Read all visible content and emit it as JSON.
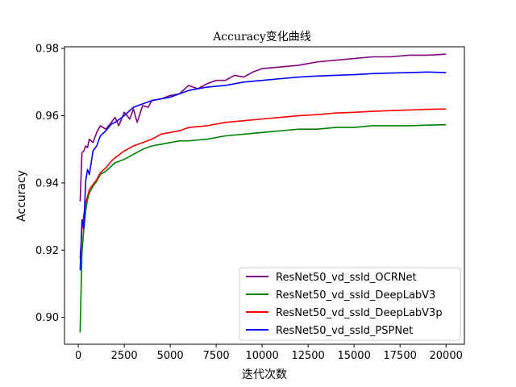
{
  "chart_data": {
    "type": "line",
    "title": "Accuracy变化曲线",
    "xlabel": "迭代次数",
    "ylabel": "Accuracy",
    "xlim": [
      -750,
      21000
    ],
    "ylim": [
      0.892,
      0.9805
    ],
    "xticks": [
      0,
      2500,
      5000,
      7500,
      10000,
      12500,
      15000,
      17500,
      20000
    ],
    "xtick_labels": [
      "0",
      "2500",
      "5000",
      "7500",
      "10000",
      "12500",
      "15000",
      "17500",
      "20000"
    ],
    "yticks": [
      0.9,
      0.92,
      0.94,
      0.96,
      0.98
    ],
    "ytick_labels": [
      "0.90",
      "0.92",
      "0.94",
      "0.96",
      "0.98"
    ],
    "grid": false,
    "legend_position": "lower-right",
    "series": [
      {
        "name": "ResNet50_vd_ssld_OCRNet",
        "color": "#800080",
        "x": [
          100,
          200,
          300,
          400,
          500,
          600,
          800,
          1000,
          1200,
          1500,
          1800,
          2000,
          2200,
          2500,
          2800,
          3000,
          3200,
          3500,
          3800,
          4000,
          4500,
          5000,
          5500,
          6000,
          6500,
          7000,
          7500,
          8000,
          8500,
          9000,
          9500,
          10000,
          11000,
          12000,
          13000,
          14000,
          15000,
          16000,
          17000,
          18000,
          19000,
          20000
        ],
        "y": [
          0.9345,
          0.949,
          0.9495,
          0.951,
          0.9505,
          0.953,
          0.952,
          0.955,
          0.957,
          0.956,
          0.958,
          0.9595,
          0.957,
          0.961,
          0.959,
          0.962,
          0.958,
          0.963,
          0.9625,
          0.9645,
          0.965,
          0.966,
          0.9665,
          0.969,
          0.968,
          0.9695,
          0.9705,
          0.9705,
          0.972,
          0.9715,
          0.973,
          0.974,
          0.9745,
          0.975,
          0.976,
          0.9765,
          0.977,
          0.9775,
          0.9775,
          0.978,
          0.978,
          0.9783
        ]
      },
      {
        "name": "ResNet50_vd_ssld_DeepLabV3",
        "color": "#008000",
        "x": [
          100,
          200,
          300,
          400,
          500,
          600,
          800,
          1000,
          1200,
          1500,
          1800,
          2000,
          2500,
          3000,
          3500,
          4000,
          4500,
          5000,
          5500,
          6000,
          7000,
          8000,
          9000,
          10000,
          11000,
          12000,
          13000,
          14000,
          15000,
          16000,
          17000,
          18000,
          19000,
          20000
        ],
        "y": [
          0.8955,
          0.9195,
          0.926,
          0.9315,
          0.935,
          0.937,
          0.939,
          0.9405,
          0.9425,
          0.9435,
          0.945,
          0.946,
          0.947,
          0.9485,
          0.95,
          0.951,
          0.9515,
          0.952,
          0.9525,
          0.9525,
          0.953,
          0.954,
          0.9545,
          0.955,
          0.9555,
          0.956,
          0.956,
          0.9565,
          0.9565,
          0.957,
          0.957,
          0.957,
          0.9572,
          0.9573
        ]
      },
      {
        "name": "ResNet50_vd_ssld_DeepLabV3p",
        "color": "#ff0000",
        "x": [
          100,
          200,
          300,
          400,
          500,
          600,
          800,
          1000,
          1200,
          1500,
          1800,
          2000,
          2500,
          3000,
          3500,
          4000,
          4500,
          5000,
          5500,
          6000,
          7000,
          8000,
          9000,
          10000,
          11000,
          12000,
          13000,
          14000,
          15000,
          16000,
          17000,
          18000,
          19000,
          20000
        ],
        "y": [
          0.9175,
          0.926,
          0.9305,
          0.934,
          0.936,
          0.938,
          0.9395,
          0.941,
          0.943,
          0.9445,
          0.9465,
          0.9475,
          0.9495,
          0.951,
          0.952,
          0.953,
          0.9545,
          0.955,
          0.9555,
          0.9565,
          0.957,
          0.958,
          0.9585,
          0.959,
          0.9595,
          0.96,
          0.9603,
          0.9608,
          0.961,
          0.9613,
          0.9615,
          0.9617,
          0.9619,
          0.962
        ]
      },
      {
        "name": "ResNet50_vd_ssld_PSPNet",
        "color": "#0000ff",
        "x": [
          100,
          200,
          300,
          400,
          500,
          600,
          800,
          1000,
          1200,
          1500,
          1800,
          2000,
          2500,
          3000,
          3500,
          4000,
          4500,
          5000,
          5500,
          6000,
          7000,
          8000,
          9000,
          10000,
          11000,
          12000,
          13000,
          14000,
          15000,
          16000,
          17000,
          18000,
          19000,
          20000
        ],
        "y": [
          0.914,
          0.929,
          0.9265,
          0.9405,
          0.944,
          0.9425,
          0.9495,
          0.951,
          0.954,
          0.9555,
          0.9575,
          0.958,
          0.96,
          0.9625,
          0.9635,
          0.9645,
          0.965,
          0.9655,
          0.9665,
          0.9675,
          0.9685,
          0.969,
          0.97,
          0.9705,
          0.971,
          0.9715,
          0.9718,
          0.972,
          0.9722,
          0.9725,
          0.9727,
          0.9728,
          0.973,
          0.9728
        ]
      }
    ]
  }
}
